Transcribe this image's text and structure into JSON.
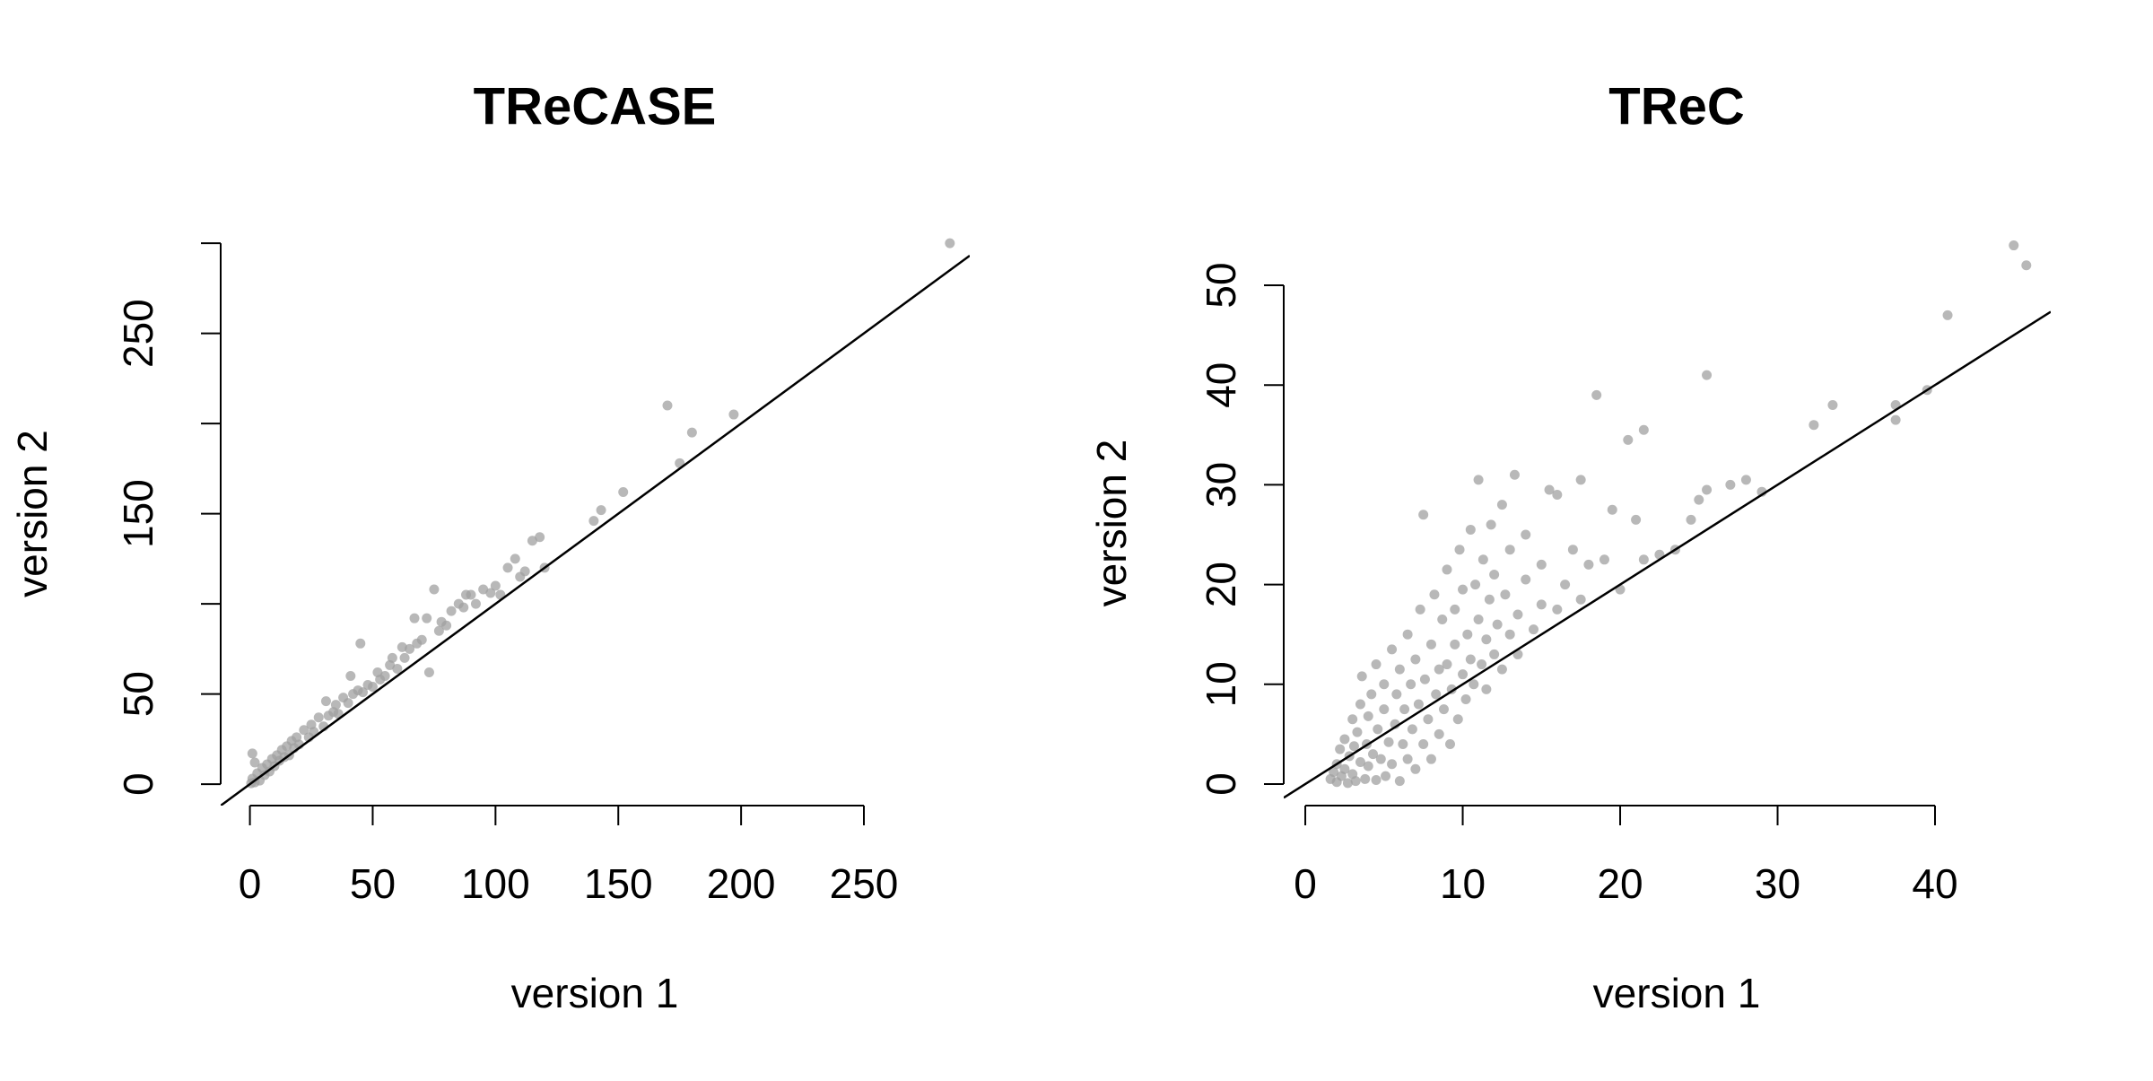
{
  "chart_data": [
    {
      "type": "scatter",
      "title": "TReCASE",
      "x_label": "version 1",
      "y_label": "version 2",
      "color": "#a0a0a0",
      "abline": {
        "intercept": 0,
        "slope": 1,
        "color": "#000000"
      },
      "xlim": [
        -11.9,
        293.1
      ],
      "ylim": [
        -11.9,
        312
      ],
      "xticks": [
        0,
        50,
        100,
        150,
        200,
        250
      ],
      "yticks": [
        0,
        50,
        {
          "value": 100,
          "label": null
        },
        150,
        {
          "value": 200,
          "label": null
        },
        250,
        {
          "value": 300,
          "label": null
        }
      ],
      "x": [
        0.5,
        1,
        1,
        2,
        2,
        3,
        4,
        5,
        6,
        7,
        8,
        9,
        10,
        11,
        12,
        13,
        14,
        15,
        16,
        17,
        18,
        19,
        20,
        22,
        24,
        25,
        26,
        28,
        30,
        31,
        32,
        34,
        35,
        36,
        38,
        40,
        41,
        42,
        44,
        45,
        46,
        48,
        50,
        52,
        53,
        55,
        57,
        58,
        60,
        62,
        63,
        65,
        67,
        68,
        70,
        72,
        73,
        75,
        77,
        78,
        80,
        82,
        85,
        87,
        88,
        90,
        92,
        95,
        98,
        100,
        102,
        105,
        108,
        110,
        112,
        115,
        118,
        120,
        140,
        143,
        152,
        170,
        175,
        180,
        197,
        285
      ],
      "y": [
        0.5,
        3,
        17,
        1,
        12,
        6,
        2,
        9,
        5,
        11,
        7,
        14,
        10,
        16,
        13,
        19,
        15,
        21,
        16,
        24,
        20,
        26,
        22,
        30,
        26,
        33,
        29,
        37,
        32,
        46,
        38,
        40,
        44,
        39,
        48,
        45,
        60,
        50,
        52,
        78,
        51,
        55,
        54,
        62,
        58,
        60,
        66,
        70,
        64,
        76,
        70,
        75,
        92,
        78,
        80,
        92,
        62,
        108,
        85,
        90,
        88,
        96,
        100,
        98,
        105,
        105,
        100,
        108,
        106,
        110,
        105,
        120,
        125,
        115,
        118,
        135,
        137,
        120,
        146,
        152,
        162,
        210,
        178,
        195,
        205,
        300
      ]
    },
    {
      "type": "scatter",
      "title": "TReC",
      "x_label": "version 1",
      "y_label": "version 2",
      "color": "#a0a0a0",
      "abline": {
        "intercept": 0,
        "slope": 1,
        "color": "#000000"
      },
      "xlim": [
        -1.37,
        47.35
      ],
      "ylim": [
        -2.16,
        54.5
      ],
      "xticks": [
        0,
        10,
        20,
        30,
        40
      ],
      "yticks": [
        0,
        10,
        20,
        30,
        40,
        50
      ],
      "x": [
        1.6,
        1.8,
        2.0,
        2.0,
        2.2,
        2.3,
        2.5,
        2.5,
        2.7,
        2.8,
        3.0,
        3.0,
        3.1,
        3.2,
        3.3,
        3.5,
        3.5,
        3.6,
        3.8,
        3.9,
        4.0,
        4.0,
        4.2,
        4.3,
        4.5,
        4.5,
        4.6,
        4.8,
        5.0,
        5.0,
        5.1,
        5.3,
        5.5,
        5.5,
        5.7,
        5.8,
        6.0,
        6.0,
        6.2,
        6.3,
        6.5,
        6.5,
        6.7,
        6.8,
        7.0,
        7.0,
        7.2,
        7.3,
        7.5,
        7.5,
        7.6,
        7.8,
        8.0,
        8.0,
        8.2,
        8.3,
        8.5,
        8.5,
        8.7,
        8.8,
        9.0,
        9.0,
        9.2,
        9.3,
        9.5,
        9.5,
        9.7,
        9.8,
        10.0,
        10.0,
        10.2,
        10.3,
        10.5,
        10.5,
        10.7,
        10.8,
        11.0,
        11.0,
        11.2,
        11.3,
        11.5,
        11.5,
        11.7,
        11.8,
        12.0,
        12.0,
        12.2,
        12.5,
        12.5,
        12.7,
        13.0,
        13.0,
        13.3,
        13.5,
        13.5,
        14.0,
        14.0,
        14.5,
        15.0,
        15.0,
        15.5,
        16.0,
        16.0,
        16.5,
        17.0,
        17.5,
        17.5,
        18.0,
        18.5,
        19.0,
        19.5,
        20.0,
        20.5,
        21.0,
        21.5,
        21.5,
        22.5,
        23.5,
        24.5,
        25.0,
        25.5,
        25.5,
        27.0,
        28.0,
        29.0,
        32.3,
        33.5,
        37.5,
        37.5,
        39.5,
        40.8,
        45.0,
        45.8
      ],
      "y": [
        0.5,
        1.2,
        0.2,
        2.0,
        3.5,
        0.8,
        1.5,
        4.5,
        0.1,
        2.8,
        6.5,
        1.0,
        3.8,
        0.3,
        5.2,
        2.2,
        8.0,
        10.8,
        0.5,
        4.0,
        6.8,
        1.8,
        9.0,
        3.0,
        12.0,
        0.4,
        5.5,
        2.5,
        7.5,
        10.0,
        0.8,
        4.2,
        13.5,
        2.0,
        6.0,
        9.0,
        0.3,
        11.5,
        4.0,
        7.5,
        15.0,
        2.5,
        10.0,
        5.5,
        12.5,
        1.5,
        8.0,
        17.5,
        4.0,
        27.0,
        10.5,
        6.5,
        14.0,
        2.5,
        19.0,
        9.0,
        11.5,
        5.0,
        16.5,
        7.5,
        21.5,
        12.0,
        4.0,
        9.5,
        17.5,
        14.0,
        6.5,
        23.5,
        11.0,
        19.5,
        8.5,
        15.0,
        25.5,
        12.5,
        10.0,
        20.0,
        30.5,
        16.5,
        12.0,
        22.5,
        14.5,
        9.5,
        18.5,
        26.0,
        13.0,
        21.0,
        16.0,
        28.0,
        11.5,
        19.0,
        15.0,
        23.5,
        31.0,
        17.0,
        13.0,
        20.5,
        25.0,
        15.5,
        18.0,
        22.0,
        29.5,
        17.5,
        29.0,
        20.0,
        23.5,
        30.5,
        18.5,
        22.0,
        39.0,
        22.5,
        27.5,
        19.5,
        34.5,
        26.5,
        35.5,
        22.5,
        23.0,
        23.5,
        26.5,
        28.5,
        41.0,
        29.5,
        30.0,
        30.5,
        29.3,
        36.0,
        38.0,
        38.0,
        36.5,
        39.5,
        47.0,
        54.0,
        52.0
      ]
    }
  ]
}
